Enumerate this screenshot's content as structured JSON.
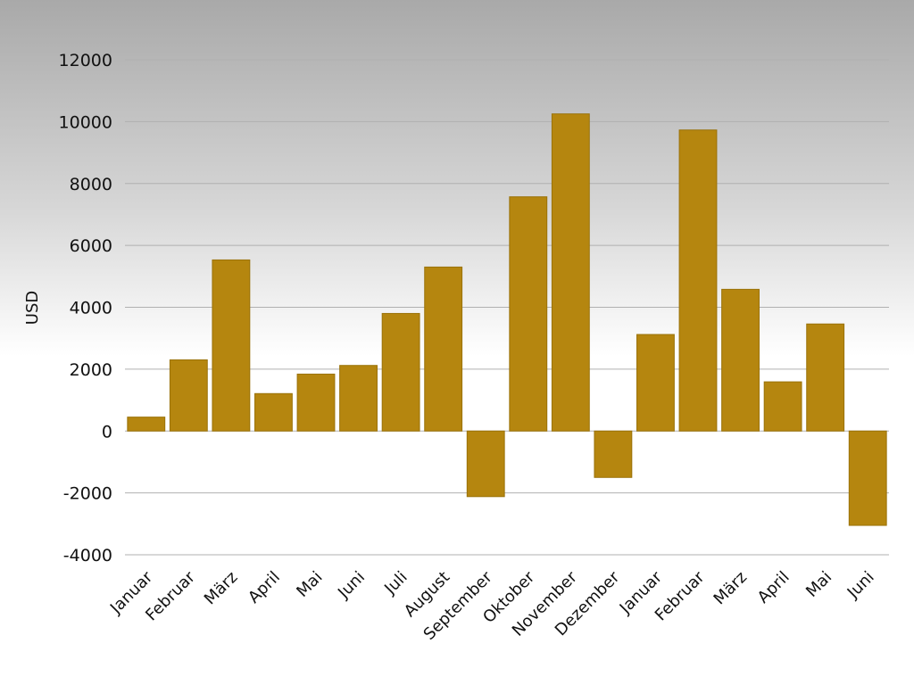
{
  "chart_data": {
    "type": "bar",
    "title": "",
    "xlabel": "",
    "ylabel": "USD",
    "ylim": [
      -4000,
      12000
    ],
    "yticks": [
      12000,
      10000,
      8000,
      6000,
      4000,
      2000,
      0,
      -2000,
      -4000
    ],
    "grid": true,
    "legend": "none",
    "categories": [
      "Januar",
      "Februar",
      "März",
      "April",
      "Mai",
      "Juni",
      "Juli",
      "August",
      "September",
      "Oktober",
      "November",
      "Dezember",
      "Januar",
      "Februar",
      "März",
      "April",
      "Mai",
      "Juni"
    ],
    "values": [
      450,
      2300,
      5530,
      1210,
      1840,
      2120,
      3800,
      5300,
      -2120,
      7570,
      10250,
      -1500,
      3120,
      9730,
      4580,
      1590,
      3460,
      -3050
    ],
    "bar_color": "#b5860f"
  }
}
